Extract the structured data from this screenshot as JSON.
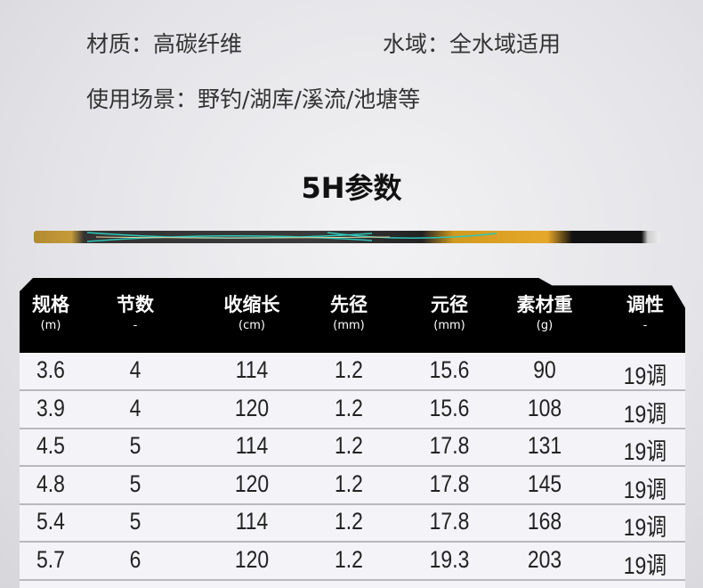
{
  "info": {
    "material": "材质：高碳纤维",
    "water": "水域：全水域适用",
    "scene": "使用场景：野钓/湖库/溪流/池塘等"
  },
  "title": "5H参数",
  "table": {
    "headers": [
      {
        "name": "规格",
        "unit": "(m)"
      },
      {
        "name": "节数",
        "unit": "-"
      },
      {
        "name": "收缩长",
        "unit": "(cm)"
      },
      {
        "name": "先径",
        "unit": "(mm)"
      },
      {
        "name": "元径",
        "unit": "(mm)"
      },
      {
        "name": "素材重",
        "unit": "(g)"
      },
      {
        "name": "调性",
        "unit": "-"
      }
    ],
    "rows": [
      [
        "3.6",
        "4",
        "114",
        "1.2",
        "15.6",
        "90",
        "19调"
      ],
      [
        "3.9",
        "4",
        "120",
        "1.2",
        "15.6",
        "108",
        "19调"
      ],
      [
        "4.5",
        "5",
        "114",
        "1.2",
        "17.8",
        "131",
        "19调"
      ],
      [
        "4.8",
        "5",
        "120",
        "1.2",
        "17.8",
        "145",
        "19调"
      ],
      [
        "5.4",
        "5",
        "114",
        "1.2",
        "17.8",
        "168",
        "19调"
      ],
      [
        "5.7",
        "6",
        "120",
        "1.2",
        "19.3",
        "203",
        "19调"
      ]
    ]
  }
}
